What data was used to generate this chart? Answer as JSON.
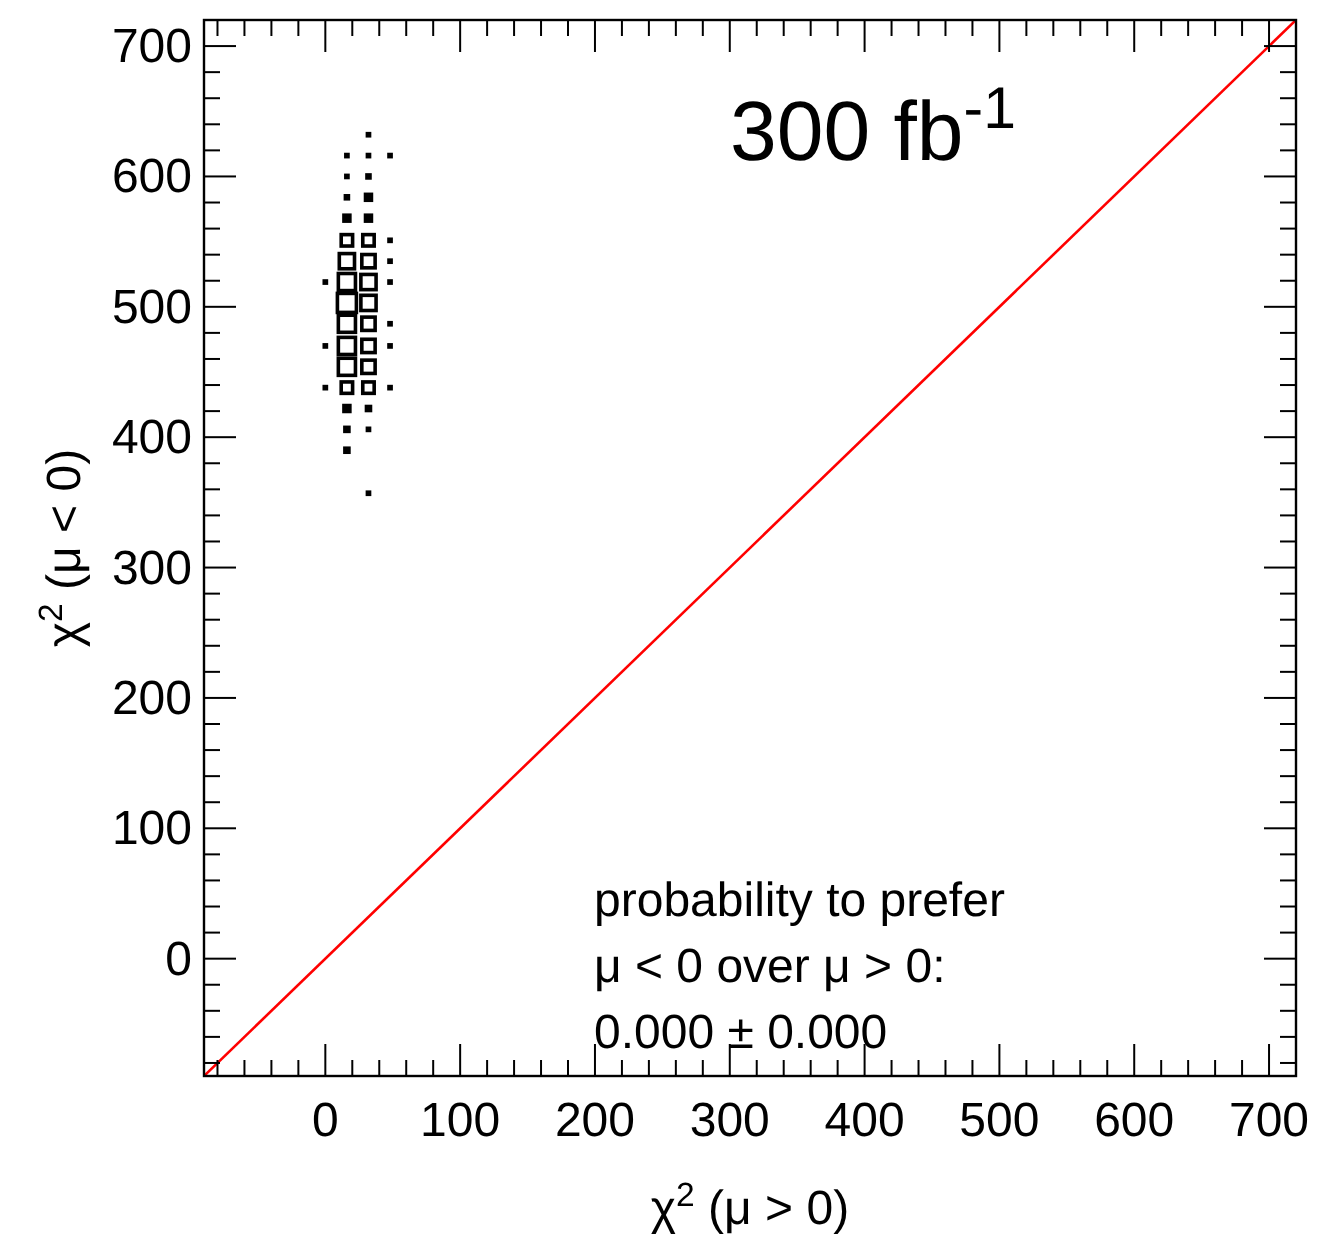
{
  "chart_data": {
    "type": "bubble",
    "xlabel": "χ$^{2}$ (μ > 0)",
    "ylabel": "χ$^{2}$ (μ < 0)",
    "xlim": [
      -90,
      720
    ],
    "ylim": [
      -90,
      720
    ],
    "xticks": [
      {
        "value": -80,
        "label": null
      },
      {
        "value": -60,
        "label": null
      },
      {
        "value": -40,
        "label": null
      },
      {
        "value": -20,
        "label": null
      },
      0,
      {
        "value": 20,
        "label": null
      },
      {
        "value": 40,
        "label": null
      },
      {
        "value": 60,
        "label": null
      },
      {
        "value": 80,
        "label": null
      },
      100,
      {
        "value": 120,
        "label": null
      },
      {
        "value": 140,
        "label": null
      },
      {
        "value": 160,
        "label": null
      },
      {
        "value": 180,
        "label": null
      },
      200,
      {
        "value": 220,
        "label": null
      },
      {
        "value": 240,
        "label": null
      },
      {
        "value": 260,
        "label": null
      },
      {
        "value": 280,
        "label": null
      },
      300,
      {
        "value": 320,
        "label": null
      },
      {
        "value": 340,
        "label": null
      },
      {
        "value": 360,
        "label": null
      },
      {
        "value": 380,
        "label": null
      },
      400,
      {
        "value": 420,
        "label": null
      },
      {
        "value": 440,
        "label": null
      },
      {
        "value": 460,
        "label": null
      },
      {
        "value": 480,
        "label": null
      },
      500,
      {
        "value": 520,
        "label": null
      },
      {
        "value": 540,
        "label": null
      },
      {
        "value": 560,
        "label": null
      },
      {
        "value": 580,
        "label": null
      },
      600,
      {
        "value": 620,
        "label": null
      },
      {
        "value": 640,
        "label": null
      },
      {
        "value": 660,
        "label": null
      },
      {
        "value": 680,
        "label": null
      },
      700
    ],
    "yticks": [
      {
        "value": -80,
        "label": null
      },
      {
        "value": -60,
        "label": null
      },
      {
        "value": -40,
        "label": null
      },
      {
        "value": -20,
        "label": null
      },
      0,
      {
        "value": 20,
        "label": null
      },
      {
        "value": 40,
        "label": null
      },
      {
        "value": 60,
        "label": null
      },
      {
        "value": 80,
        "label": null
      },
      100,
      {
        "value": 120,
        "label": null
      },
      {
        "value": 140,
        "label": null
      },
      {
        "value": 160,
        "label": null
      },
      {
        "value": 180,
        "label": null
      },
      200,
      {
        "value": 220,
        "label": null
      },
      {
        "value": 240,
        "label": null
      },
      {
        "value": 260,
        "label": null
      },
      {
        "value": 280,
        "label": null
      },
      300,
      {
        "value": 320,
        "label": null
      },
      {
        "value": 340,
        "label": null
      },
      {
        "value": 360,
        "label": null
      },
      {
        "value": 380,
        "label": null
      },
      400,
      {
        "value": 420,
        "label": null
      },
      {
        "value": 440,
        "label": null
      },
      {
        "value": 460,
        "label": null
      },
      {
        "value": 480,
        "label": null
      },
      500,
      {
        "value": 520,
        "label": null
      },
      {
        "value": 540,
        "label": null
      },
      {
        "value": 560,
        "label": null
      },
      {
        "value": 580,
        "label": null
      },
      600,
      {
        "value": 620,
        "label": null
      },
      {
        "value": 640,
        "label": null
      },
      {
        "value": 660,
        "label": null
      },
      {
        "value": 680,
        "label": null
      },
      700
    ],
    "grid": false,
    "annotations": [
      "300 fb$^{-1}$",
      "probability to prefer",
      "μ < 0 over μ > 0:",
      "0.000 ± 0.000"
    ],
    "series": [
      {
        "color": "#000000",
        "marker": "square",
        "x": [
          32,
          16,
          32,
          48,
          16,
          32,
          16,
          32,
          16,
          32,
          16,
          32,
          48,
          16,
          32,
          48,
          0,
          16,
          32,
          48,
          16,
          32,
          16,
          32,
          48,
          0,
          16,
          32,
          48,
          16,
          32,
          0,
          16,
          32,
          48,
          16,
          32,
          16,
          32,
          16,
          32
        ],
        "values": [
          632,
          616,
          616,
          616,
          600,
          600,
          584,
          584,
          568,
          568,
          551,
          551,
          551,
          535,
          535,
          535,
          519,
          519,
          519,
          519,
          503,
          503,
          487,
          487,
          487,
          470,
          470,
          470,
          470,
          454,
          454,
          438,
          438,
          438,
          438,
          422,
          422,
          406,
          406,
          390,
          357
        ],
        "sizes": [
          0.09,
          0.09,
          0.09,
          0.09,
          0.09,
          0.12,
          0.12,
          0.25,
          0.25,
          0.25,
          0.36,
          0.36,
          0.09,
          0.64,
          0.49,
          0.09,
          0.09,
          0.81,
          0.64,
          0.09,
          1,
          0.64,
          0.81,
          0.49,
          0.09,
          0.09,
          0.81,
          0.49,
          0.09,
          0.81,
          0.49,
          0.09,
          0.36,
          0.36,
          0.09,
          0.25,
          0.16,
          0.16,
          0.09,
          0.16,
          0.09
        ]
      },
      {
        "type": "line",
        "color": "#ff0000",
        "line_style": "solid",
        "marker": "none",
        "x": [
          -90,
          720
        ],
        "values": [
          -90,
          720
        ]
      }
    ]
  }
}
